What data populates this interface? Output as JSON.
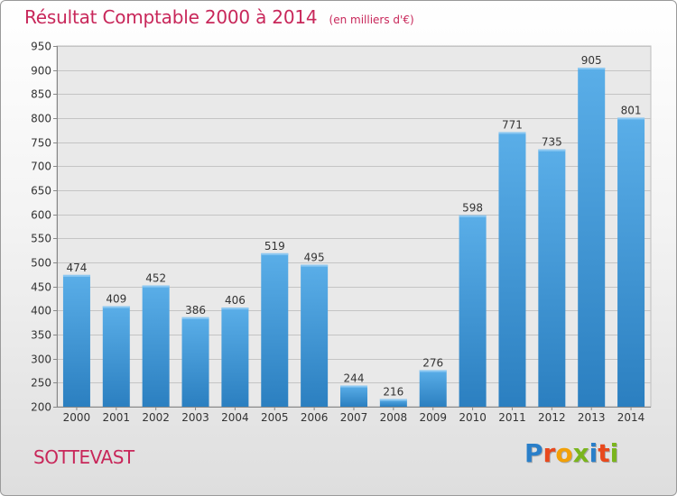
{
  "header": {
    "title": "Résultat Comptable 2000 à 2014",
    "subtitle": "(en milliers d'€)"
  },
  "footer": {
    "commune": "SOTTEVAST",
    "logo_text": "Proxiti",
    "logo_colors": [
      "#2a7fc9",
      "#e8491d",
      "#f2a007",
      "#7ab51d",
      "#2a7fc9",
      "#e8491d",
      "#7ab51d"
    ]
  },
  "chart_data": {
    "type": "bar",
    "title": "Résultat Comptable 2000 à 2014",
    "subtitle": "(en milliers d'€)",
    "categories": [
      "2000",
      "2001",
      "2002",
      "2003",
      "2004",
      "2005",
      "2006",
      "2007",
      "2008",
      "2009",
      "2010",
      "2011",
      "2012",
      "2013",
      "2014"
    ],
    "values": [
      474,
      409,
      452,
      386,
      406,
      519,
      495,
      244,
      216,
      276,
      598,
      771,
      735,
      905,
      801
    ],
    "ylim": [
      200,
      950
    ],
    "yticks": [
      200,
      250,
      300,
      350,
      400,
      450,
      500,
      550,
      600,
      650,
      700,
      750,
      800,
      850,
      900,
      950
    ],
    "grid": true,
    "data_labels": true,
    "bar_color_top": "#5aaee8",
    "bar_color_bottom": "#2b7fc0"
  }
}
